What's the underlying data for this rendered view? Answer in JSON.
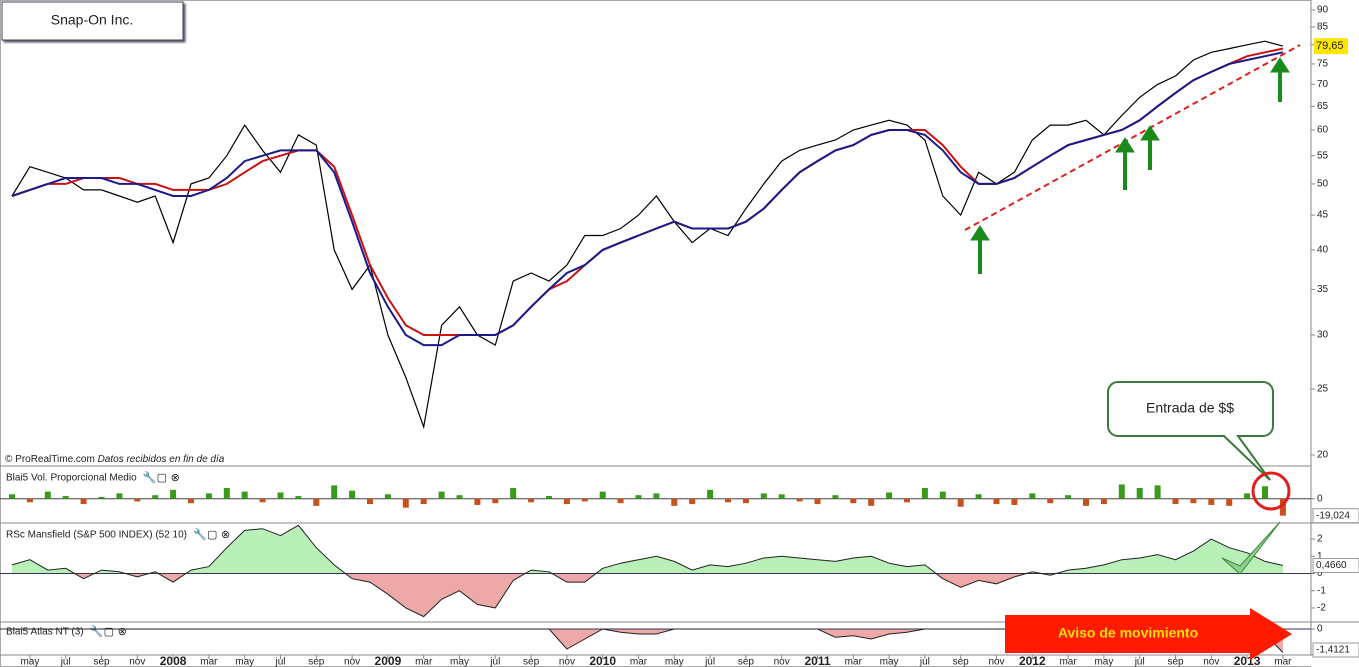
{
  "header": {
    "title": "Snap-On Inc.",
    "source": "© ProRealTime.com",
    "note": "Datos recibidos en fin de día"
  },
  "annotations": {
    "callout": "Entrada de $$",
    "warning": "Aviso de movimiento"
  },
  "chart_data": [
    {
      "type": "line",
      "log_scale": true,
      "categories": [
        null,
        "may",
        null,
        "jul",
        null,
        "sep",
        null,
        "nov",
        null,
        "2008",
        null,
        "mar",
        null,
        "may",
        null,
        "jul",
        null,
        "sep",
        null,
        "nov",
        null,
        "2009",
        null,
        "mar",
        null,
        "may",
        null,
        "jul",
        null,
        "sep",
        null,
        "nov",
        null,
        "2010",
        null,
        "mar",
        null,
        "may",
        null,
        "jul",
        null,
        "sep",
        null,
        "nov",
        null,
        "2011",
        null,
        "mar",
        null,
        "may",
        null,
        "jul",
        null,
        "sep",
        null,
        "nov",
        null,
        "2012",
        null,
        "mar",
        null,
        "may",
        null,
        "jul",
        null,
        "sep",
        null,
        "nov",
        null,
        "2013",
        null,
        "mar"
      ],
      "series": [
        {
          "color": "#000000",
          "values": [
            48,
            53,
            52,
            51,
            49,
            49,
            48,
            47,
            48,
            41,
            50,
            51,
            55,
            61,
            56,
            52,
            59,
            57,
            40,
            35,
            38,
            30,
            26,
            22,
            31,
            33,
            30,
            29,
            36,
            37,
            36,
            38,
            42,
            42,
            43,
            45,
            48,
            44,
            41,
            43,
            42,
            46,
            50,
            54,
            56,
            57,
            58,
            60,
            61,
            62,
            61,
            58,
            48,
            45,
            52,
            50,
            52,
            58,
            61,
            61,
            62,
            59,
            63,
            67,
            70,
            72,
            76,
            78,
            79,
            80,
            81,
            79.65
          ],
          "value_labels": [
            null,
            null,
            null,
            null,
            null,
            null,
            null,
            null,
            null,
            null,
            null,
            null,
            null,
            null,
            null,
            null,
            null,
            null,
            null,
            null,
            null,
            null,
            null,
            null,
            null,
            null,
            null,
            null,
            null,
            null,
            null,
            null,
            null,
            null,
            null,
            null,
            null,
            null,
            null,
            null,
            null,
            null,
            null,
            null,
            null,
            null,
            null,
            null,
            null,
            null,
            null,
            null,
            null,
            null,
            null,
            null,
            null,
            null,
            null,
            null,
            null,
            null,
            null,
            null,
            null,
            null,
            null,
            null,
            null,
            null,
            null,
            "79,65"
          ]
        },
        {
          "color": "#cc1111",
          "values": [
            48,
            49,
            50,
            50,
            51,
            51,
            51,
            50,
            50,
            49,
            49,
            49,
            50,
            52,
            54,
            55,
            56,
            56,
            53,
            45,
            38,
            34,
            31,
            30,
            30,
            30,
            30,
            30,
            31,
            33,
            35,
            36,
            38,
            40,
            41,
            42,
            43,
            44,
            43,
            43,
            43,
            44,
            46,
            49,
            52,
            54,
            56,
            57,
            59,
            60,
            60,
            60,
            57,
            53,
            50,
            50,
            51,
            53,
            55,
            57,
            58,
            59,
            60,
            62,
            65,
            68,
            71,
            73,
            75,
            77,
            78,
            79
          ]
        },
        {
          "color": "#1a1a8c",
          "values": [
            48,
            49,
            50,
            51,
            51,
            51,
            50,
            50,
            49,
            48,
            48,
            49,
            51,
            54,
            55,
            56,
            56,
            56,
            52,
            44,
            37,
            33,
            30,
            29,
            29,
            30,
            30,
            30,
            31,
            33,
            35,
            37,
            38,
            40,
            41,
            42,
            43,
            44,
            43,
            43,
            43,
            44,
            46,
            49,
            52,
            54,
            56,
            57,
            59,
            60,
            60,
            59,
            56,
            52,
            50,
            50,
            51,
            53,
            55,
            57,
            58,
            59,
            60,
            62,
            65,
            68,
            71,
            73,
            75,
            76,
            77,
            78
          ]
        }
      ],
      "ylim": [
        20,
        90
      ],
      "yticks": [
        20,
        25,
        30,
        35,
        40,
        45,
        50,
        55,
        60,
        65,
        70,
        75,
        80,
        85,
        90
      ]
    },
    {
      "type": "bar",
      "title": "Blai5 Vol. Proporcional Medio",
      "colors": {
        "up": "#3a9a1a",
        "down": "#c8501e"
      },
      "values": [
        5,
        -4,
        8,
        3,
        -6,
        2,
        6,
        -3,
        4,
        10,
        -5,
        6,
        12,
        8,
        -4,
        7,
        3,
        -8,
        15,
        9,
        -6,
        5,
        -10,
        -6,
        8,
        4,
        -7,
        -5,
        12,
        -4,
        3,
        -6,
        -3,
        8,
        -5,
        4,
        6,
        -8,
        -6,
        10,
        -4,
        -5,
        6,
        5,
        -3,
        -6,
        4,
        -5,
        -8,
        7,
        -4,
        12,
        8,
        -9,
        5,
        -6,
        -7,
        6,
        -5,
        4,
        -8,
        -6,
        16,
        12,
        15,
        -6,
        -5,
        -7,
        -8,
        6,
        14,
        -19.024
      ],
      "last_label": "-19,024",
      "ylim": [
        -25,
        30
      ],
      "yticks": [
        0
      ]
    },
    {
      "type": "area",
      "title": "RSc Mansfield (S&P 500 INDEX) (52 10)",
      "colors": {
        "up": "#b8f0b8",
        "down": "#eea8a8"
      },
      "values": [
        0.5,
        0.8,
        0.2,
        0.3,
        -0.3,
        0.2,
        0.1,
        -0.2,
        0.1,
        -0.5,
        0.2,
        0.4,
        1.5,
        2.5,
        2.6,
        2.2,
        2.8,
        1.5,
        0.5,
        -0.3,
        -0.5,
        -1.2,
        -2,
        -2.5,
        -1.5,
        -1,
        -1.8,
        -2,
        -0.4,
        0.2,
        0.1,
        -0.5,
        -0.5,
        0.3,
        0.6,
        0.8,
        1,
        0.7,
        0.2,
        0.5,
        0.4,
        0.6,
        0.9,
        1,
        0.9,
        0.8,
        0.7,
        0.9,
        1,
        0.6,
        0.4,
        0.5,
        -0.3,
        -0.8,
        -0.4,
        -0.6,
        -0.2,
        0.1,
        -0.1,
        0.2,
        0.3,
        0.5,
        0.8,
        0.9,
        1.1,
        0.8,
        1.3,
        2,
        1.5,
        1.2,
        0.7,
        0.466
      ],
      "last_label": "0,4660",
      "ylim": [
        -2.7,
        2.7
      ],
      "yticks": [
        2,
        1,
        0,
        -1,
        -2
      ]
    },
    {
      "type": "area",
      "title": "Blai5 Atlas NT (3)",
      "colors": {
        "up": "#b8f0b8",
        "down": "#eea8a8"
      },
      "values": [
        0,
        0,
        0,
        0,
        0,
        0,
        0,
        0,
        0,
        0,
        0,
        0,
        0,
        0,
        0,
        0,
        0,
        0,
        0,
        0,
        0,
        0,
        0,
        0,
        0,
        0,
        0,
        0,
        0,
        0,
        0,
        -1.2,
        -0.6,
        0,
        -0.2,
        -0.3,
        -0.3,
        0,
        0,
        0,
        0,
        0,
        0,
        0,
        0,
        0,
        -0.5,
        -0.4,
        -0.6,
        -0.3,
        -0.2,
        0,
        0,
        0,
        0,
        0,
        0,
        0,
        0,
        0,
        0,
        0,
        0,
        0,
        0,
        0,
        0,
        0,
        0,
        0,
        -0.3,
        -1.4121
      ],
      "last_label": "-1,4121",
      "ylim": [
        -1.5,
        0.3
      ],
      "yticks": [
        0
      ]
    }
  ]
}
